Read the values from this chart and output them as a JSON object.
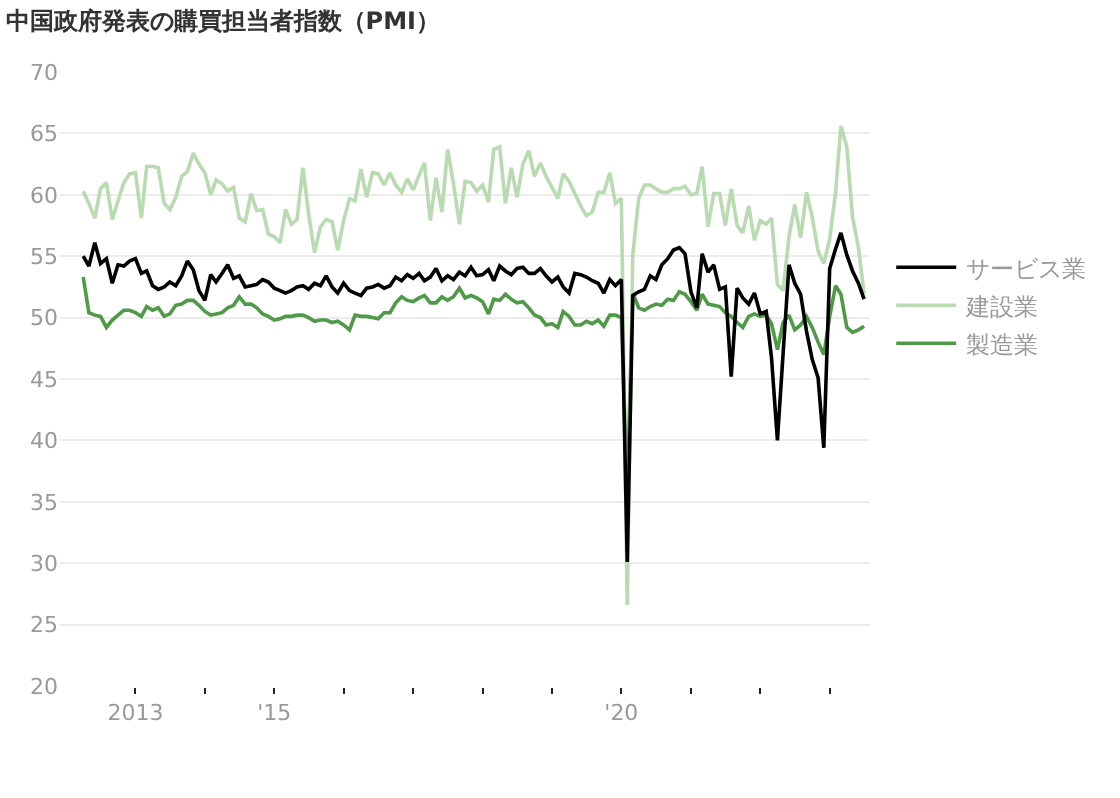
{
  "chart_data": {
    "type": "line",
    "title": "中国政府発表の購買担当者指数（PMI）",
    "x": [
      "2012-04",
      "2012-05",
      "2012-06",
      "2012-07",
      "2012-08",
      "2012-09",
      "2012-10",
      "2012-11",
      "2012-12",
      "2013-01",
      "2013-02",
      "2013-03",
      "2013-04",
      "2013-05",
      "2013-06",
      "2013-07",
      "2013-08",
      "2013-09",
      "2013-10",
      "2013-11",
      "2013-12",
      "2014-01",
      "2014-02",
      "2014-03",
      "2014-04",
      "2014-05",
      "2014-06",
      "2014-07",
      "2014-08",
      "2014-09",
      "2014-10",
      "2014-11",
      "2014-12",
      "2015-01",
      "2015-02",
      "2015-03",
      "2015-04",
      "2015-05",
      "2015-06",
      "2015-07",
      "2015-08",
      "2015-09",
      "2015-10",
      "2015-11",
      "2015-12",
      "2016-01",
      "2016-02",
      "2016-03",
      "2016-04",
      "2016-05",
      "2016-06",
      "2016-07",
      "2016-08",
      "2016-09",
      "2016-10",
      "2016-11",
      "2016-12",
      "2017-01",
      "2017-02",
      "2017-03",
      "2017-04",
      "2017-05",
      "2017-06",
      "2017-07",
      "2017-08",
      "2017-09",
      "2017-10",
      "2017-11",
      "2017-12",
      "2018-01",
      "2018-02",
      "2018-03",
      "2018-04",
      "2018-05",
      "2018-06",
      "2018-07",
      "2018-08",
      "2018-09",
      "2018-10",
      "2018-11",
      "2018-12",
      "2019-01",
      "2019-02",
      "2019-03",
      "2019-04",
      "2019-05",
      "2019-06",
      "2019-07",
      "2019-08",
      "2019-09",
      "2019-10",
      "2019-11",
      "2019-12",
      "2020-01",
      "2020-02",
      "2020-03",
      "2020-04",
      "2020-05",
      "2020-06",
      "2020-07",
      "2020-08",
      "2020-09",
      "2020-10",
      "2020-11",
      "2020-12",
      "2021-01",
      "2021-02",
      "2021-03",
      "2021-04",
      "2021-05",
      "2021-06",
      "2021-07",
      "2021-08",
      "2021-09",
      "2021-10",
      "2021-11",
      "2021-12",
      "2022-01",
      "2022-02",
      "2022-03",
      "2022-04",
      "2022-05",
      "2022-06",
      "2022-07",
      "2022-08",
      "2022-09",
      "2022-10",
      "2022-11",
      "2022-12",
      "2023-01",
      "2023-02",
      "2023-03",
      "2023-04",
      "2023-05",
      "2023-06",
      "2023-07"
    ],
    "series": [
      {
        "name": "サービス業",
        "color": "#000000",
        "values": [
          55.0,
          54.2,
          56.1,
          54.4,
          54.8,
          52.8,
          54.3,
          54.2,
          54.6,
          54.8,
          53.6,
          53.8,
          52.6,
          52.3,
          52.5,
          52.9,
          52.6,
          53.4,
          54.6,
          53.9,
          52.2,
          51.4,
          53.5,
          52.9,
          53.6,
          54.3,
          53.2,
          53.4,
          52.5,
          52.6,
          52.7,
          53.1,
          52.9,
          52.4,
          52.2,
          52.0,
          52.2,
          52.5,
          52.6,
          52.3,
          52.8,
          52.6,
          53.4,
          52.5,
          52.0,
          52.8,
          52.2,
          52.0,
          51.8,
          52.4,
          52.5,
          52.7,
          52.4,
          52.6,
          53.3,
          53.0,
          53.5,
          53.2,
          53.6,
          53.0,
          53.3,
          54.0,
          53.0,
          53.4,
          53.1,
          53.7,
          53.4,
          54.1,
          53.4,
          53.5,
          53.9,
          53.0,
          54.2,
          53.8,
          53.5,
          54.0,
          54.1,
          53.6,
          53.6,
          54.0,
          53.4,
          52.9,
          53.3,
          52.5,
          52.0,
          53.6,
          53.5,
          53.3,
          53.0,
          52.8,
          52.0,
          53.1,
          52.6,
          53.1,
          30.1,
          51.8,
          52.1,
          52.3,
          53.4,
          53.1,
          54.3,
          54.8,
          55.5,
          55.7,
          55.2,
          52.1,
          50.8,
          55.2,
          53.7,
          54.3,
          52.3,
          52.5,
          45.2,
          52.4,
          51.6,
          51.1,
          52.0,
          50.3,
          50.5,
          46.7,
          40.0,
          47.1,
          54.3,
          52.8,
          51.9,
          48.9,
          46.6,
          45.1,
          39.4,
          54.0,
          55.6,
          56.9,
          55.1,
          53.8,
          52.8,
          51.5
        ]
      },
      {
        "name": "建設業",
        "color": "#b9dbb1",
        "values": [
          60.3,
          59.3,
          58.1,
          60.5,
          61.0,
          58.0,
          59.5,
          61.0,
          61.7,
          61.8,
          58.1,
          62.3,
          62.3,
          62.2,
          59.3,
          58.8,
          59.8,
          61.5,
          61.9,
          63.4,
          62.5,
          61.8,
          60.0,
          61.2,
          60.9,
          60.3,
          60.6,
          58.1,
          57.8,
          60.1,
          58.7,
          58.8,
          56.8,
          56.6,
          56.1,
          58.8,
          57.6,
          58.0,
          62.2,
          58.4,
          55.3,
          57.4,
          58.0,
          57.8,
          55.5,
          57.9,
          59.7,
          59.5,
          62.1,
          59.8,
          61.8,
          61.7,
          60.8,
          61.8,
          60.8,
          60.2,
          61.3,
          60.4,
          61.6,
          62.6,
          57.9,
          61.4,
          58.6,
          63.7,
          60.9,
          57.6,
          61.1,
          61.0,
          60.3,
          60.8,
          59.4,
          63.7,
          63.9,
          59.3,
          62.2,
          59.8,
          62.5,
          63.6,
          61.5,
          62.6,
          61.5,
          60.6,
          59.7,
          61.7,
          61.1,
          60.1,
          59.1,
          58.3,
          58.6,
          60.2,
          60.2,
          61.8,
          59.3,
          59.7,
          26.6,
          55.1,
          59.7,
          60.8,
          60.8,
          60.5,
          60.2,
          60.2,
          60.5,
          60.5,
          60.7,
          60.0,
          60.1,
          62.3,
          57.4,
          60.1,
          60.1,
          57.5,
          60.5,
          57.5,
          56.9,
          59.1,
          56.3,
          57.9,
          57.6,
          58.1,
          52.7,
          52.2,
          56.6,
          59.2,
          56.5,
          60.2,
          58.2,
          55.4,
          54.4,
          56.4,
          60.2,
          65.6,
          63.9,
          58.2,
          55.7,
          51.9
        ]
      },
      {
        "name": "製造業",
        "color": "#4f9a47",
        "values": [
          53.3,
          50.4,
          50.2,
          50.1,
          49.2,
          49.8,
          50.2,
          50.6,
          50.6,
          50.4,
          50.1,
          50.9,
          50.6,
          50.8,
          50.1,
          50.3,
          51.0,
          51.1,
          51.4,
          51.4,
          51.0,
          50.5,
          50.2,
          50.3,
          50.4,
          50.8,
          51.0,
          51.7,
          51.1,
          51.1,
          50.8,
          50.3,
          50.1,
          49.8,
          49.9,
          50.1,
          50.1,
          50.2,
          50.2,
          50.0,
          49.7,
          49.8,
          49.8,
          49.6,
          49.7,
          49.4,
          49.0,
          50.2,
          50.1,
          50.1,
          50.0,
          49.9,
          50.4,
          50.4,
          51.2,
          51.7,
          51.4,
          51.3,
          51.6,
          51.8,
          51.2,
          51.2,
          51.7,
          51.4,
          51.7,
          52.4,
          51.6,
          51.8,
          51.6,
          51.3,
          50.3,
          51.5,
          51.4,
          51.9,
          51.5,
          51.2,
          51.3,
          50.8,
          50.2,
          50.0,
          49.4,
          49.5,
          49.2,
          50.5,
          50.1,
          49.4,
          49.4,
          49.7,
          49.5,
          49.8,
          49.3,
          50.2,
          50.2,
          50.0,
          35.7,
          52.0,
          50.8,
          50.6,
          50.9,
          51.1,
          51.0,
          51.5,
          51.4,
          52.1,
          51.9,
          51.3,
          50.6,
          51.9,
          51.1,
          51.0,
          50.9,
          50.4,
          50.1,
          49.6,
          49.2,
          50.1,
          50.3,
          50.1,
          50.2,
          49.5,
          47.4,
          49.6,
          50.2,
          49.0,
          49.4,
          50.1,
          49.2,
          48.0,
          47.0,
          50.1,
          52.6,
          51.9,
          49.2,
          48.8,
          49.0,
          49.3
        ]
      }
    ],
    "xlim": [
      "2011-12",
      "2023-08"
    ],
    "xticks": [
      "2013",
      {
        "value": "2014",
        "label": null
      },
      {
        "value": "2015",
        "label": "'15"
      },
      {
        "value": "2016",
        "label": null
      },
      {
        "value": "2017",
        "label": null
      },
      {
        "value": "2018",
        "label": null
      },
      {
        "value": "2019",
        "label": null
      },
      {
        "value": "2020",
        "label": "'20"
      },
      {
        "value": "2021",
        "label": null
      },
      {
        "value": "2022",
        "label": null
      },
      {
        "value": "2023",
        "label": null
      }
    ],
    "ylim": [
      20,
      70
    ],
    "yticks": [
      20,
      25,
      30,
      35,
      40,
      45,
      50,
      55,
      60,
      65,
      70
    ],
    "grid": "y",
    "legend": "right",
    "marker": "none",
    "line_style": "solid"
  }
}
